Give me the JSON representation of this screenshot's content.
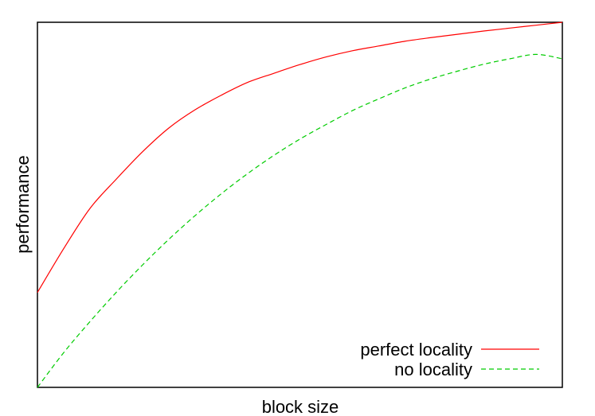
{
  "chart_data": {
    "type": "line",
    "xlabel": "block size",
    "ylabel": "performance",
    "xlim": [
      0,
      1
    ],
    "ylim": [
      0,
      1
    ],
    "grid": false,
    "ticks": false,
    "legend": "bottom-right",
    "series": [
      {
        "name": "perfect locality",
        "color": "#ff0000",
        "dash": "solid",
        "x": [
          0,
          0.05,
          0.1,
          0.15,
          0.2,
          0.25,
          0.3,
          0.35,
          0.4,
          0.45,
          0.5,
          0.55,
          0.6,
          0.65,
          0.7,
          0.75,
          0.8,
          0.85,
          0.9,
          0.95,
          1
        ],
        "y": [
          0.26,
          0.38,
          0.49,
          0.57,
          0.645,
          0.71,
          0.76,
          0.8,
          0.835,
          0.86,
          0.884,
          0.905,
          0.922,
          0.935,
          0.948,
          0.958,
          0.967,
          0.976,
          0.984,
          0.992,
          1.0
        ]
      },
      {
        "name": "no locality",
        "color": "#00cc00",
        "dash": "dashed",
        "x": [
          0,
          0.05,
          0.1,
          0.15,
          0.2,
          0.25,
          0.3,
          0.35,
          0.4,
          0.45,
          0.5,
          0.55,
          0.6,
          0.65,
          0.7,
          0.75,
          0.8,
          0.85,
          0.9,
          0.95,
          1
        ],
        "y": [
          0.0,
          0.095,
          0.18,
          0.26,
          0.335,
          0.405,
          0.47,
          0.53,
          0.585,
          0.635,
          0.68,
          0.72,
          0.758,
          0.79,
          0.82,
          0.845,
          0.866,
          0.885,
          0.9,
          0.912,
          0.9
        ]
      }
    ]
  }
}
